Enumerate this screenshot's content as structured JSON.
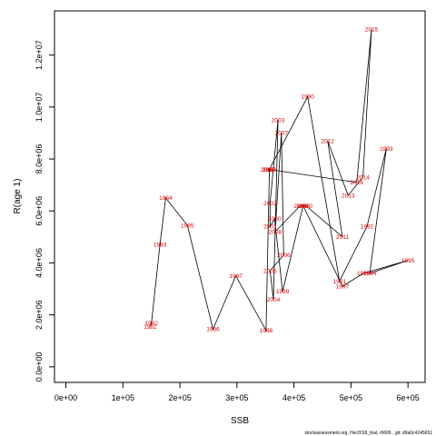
{
  "chart_data": {
    "type": "line",
    "xlabel": "SSB",
    "ylabel": "R(age 1)",
    "xlim": [
      -20000,
      630000
    ],
    "ylim": [
      -600000,
      13700000
    ],
    "x_ticks": [
      0,
      100000,
      200000,
      300000,
      400000,
      500000,
      600000
    ],
    "x_tick_labels": [
      "0e+00",
      "1e+05",
      "2e+05",
      "3e+05",
      "4e+05",
      "5e+05",
      "6e+05"
    ],
    "y_ticks": [
      0,
      2000000,
      4000000,
      6000000,
      8000000,
      10000000,
      12000000
    ],
    "y_tick_labels": [
      "0.0e+00",
      "2.0e+06",
      "4.0e+06",
      "6.0e+06",
      "8.0e+06",
      "1.0e+07",
      "1.2e+07"
    ],
    "grid": false,
    "points": [
      {
        "year": "1981",
        "x": 148000,
        "y": 1550000
      },
      {
        "year": "1982",
        "x": 150000,
        "y": 1680000
      },
      {
        "year": "1983",
        "x": 165000,
        "y": 4700000
      },
      {
        "year": "1984",
        "x": 175000,
        "y": 6500000
      },
      {
        "year": "1985",
        "x": 213000,
        "y": 5450000
      },
      {
        "year": "1986",
        "x": 258000,
        "y": 1450000
      },
      {
        "year": "1987",
        "x": 298000,
        "y": 3500000
      },
      {
        "year": "1988",
        "x": 351000,
        "y": 1400000
      },
      {
        "year": "1989",
        "x": 357000,
        "y": 7600000
      },
      {
        "year": "1990",
        "x": 424000,
        "y": 10400000
      },
      {
        "year": "1991",
        "x": 480000,
        "y": 3300000
      },
      {
        "year": "1992",
        "x": 528000,
        "y": 5400000
      },
      {
        "year": "1993",
        "x": 562000,
        "y": 8400000
      },
      {
        "year": "1994",
        "x": 533000,
        "y": 3600000
      },
      {
        "year": "1995",
        "x": 600000,
        "y": 4100000
      },
      {
        "year": "1996",
        "x": 522000,
        "y": 3600000
      },
      {
        "year": "1997",
        "x": 485000,
        "y": 3100000
      },
      {
        "year": "1998",
        "x": 416000,
        "y": 6200000
      },
      {
        "year": "1999",
        "x": 380000,
        "y": 2900000
      },
      {
        "year": "2000",
        "x": 366000,
        "y": 5700000
      },
      {
        "year": "2001",
        "x": 358000,
        "y": 5400000
      },
      {
        "year": "2002",
        "x": 358000,
        "y": 6300000
      },
      {
        "year": "2003",
        "x": 372000,
        "y": 9500000
      },
      {
        "year": "2004",
        "x": 364000,
        "y": 2600000
      },
      {
        "year": "2005",
        "x": 358000,
        "y": 3700000
      },
      {
        "year": "2006",
        "x": 382000,
        "y": 4300000
      },
      {
        "year": "2007",
        "x": 378000,
        "y": 9000000
      },
      {
        "year": "2008",
        "x": 367000,
        "y": 5200000
      },
      {
        "year": "2009",
        "x": 411000,
        "y": 6200000
      },
      {
        "year": "2010",
        "x": 421000,
        "y": 6200000
      },
      {
        "year": "2011",
        "x": 485000,
        "y": 5000000
      },
      {
        "year": "2012",
        "x": 459000,
        "y": 8700000
      },
      {
        "year": "2013",
        "x": 495000,
        "y": 6600000
      },
      {
        "year": "2014",
        "x": 521000,
        "y": 7300000
      },
      {
        "year": "2015",
        "x": 536000,
        "y": 13000000
      },
      {
        "year": "2016",
        "x": 510000,
        "y": 7100000
      },
      {
        "year": "2017",
        "x": 356000,
        "y": 7600000
      },
      {
        "year": "2018",
        "x": 353000,
        "y": 7600000
      }
    ]
  },
  "footnote": "stockassessment.org, Her2018_trial, r9606 , git: d9a0c4245651"
}
